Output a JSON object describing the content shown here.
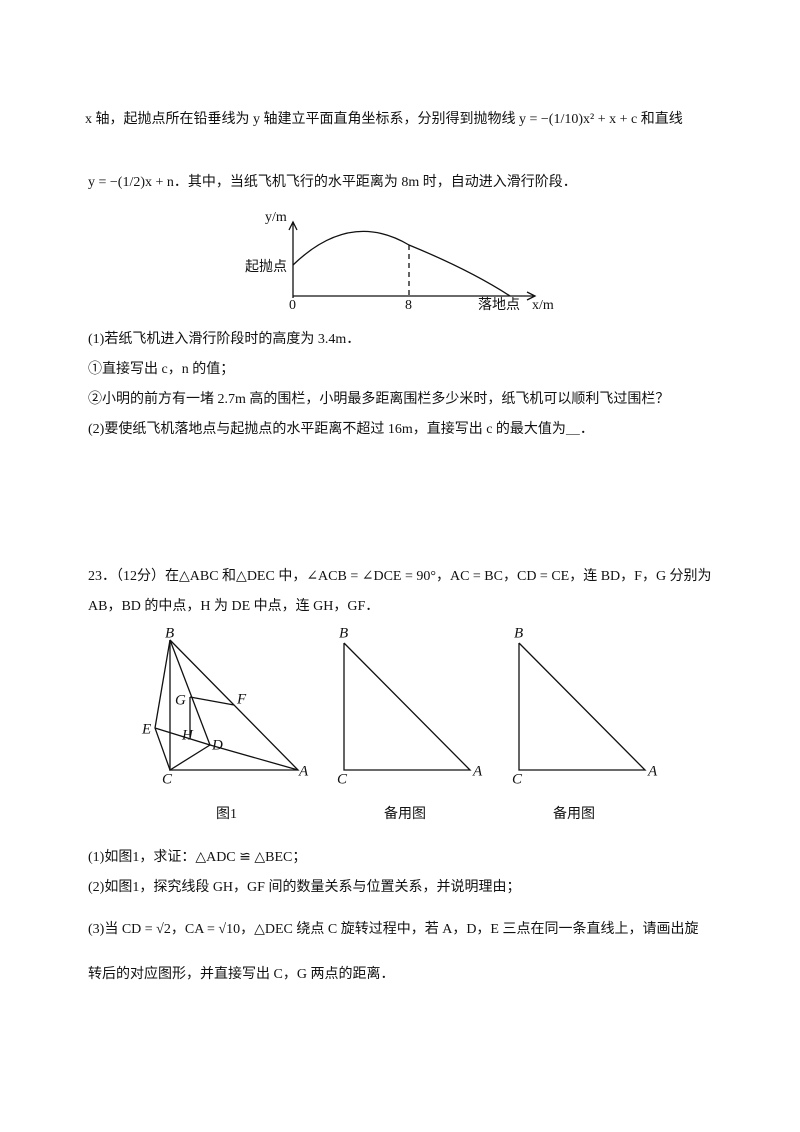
{
  "intro": [
    "x 轴，起抛点所在铅垂线为 y 轴建立平面直角坐标系，分别得到抛物线 y = −(1/10)x² + x + c 和直线",
    "y = −(1/2)x + n．其中，当纸飞机飞行的水平距离为 8m 时，自动进入滑行阶段．"
  ],
  "graph": {
    "y_label": "y/m",
    "start_label": "起抛点",
    "origin": "0",
    "x_mark": "8",
    "land_label": "落地点",
    "x_label": "x/m"
  },
  "questions": [
    "(1)若纸飞机进入滑行阶段时的高度为 3.4m．",
    "①直接写出 c，n 的值；",
    "②小明的前方有一堵 2.7m 高的围栏，小明最多距离围栏多少米时，纸飞机可以顺利飞过围栏？",
    "(2)要使纸飞机落地点与起抛点的水平距离不超过 16m，直接写出 c 的最大值为＿．"
  ],
  "problem23": {
    "lines": [
      "23．（12分）在△ABC 和△DEC 中，∠ACB = ∠DCE = 90°，AC = BC，CD = CE，连 BD，F，G 分别为",
      "AB，BD 的中点，H 为 DE 中点，连 GH，GF．"
    ],
    "figure1": {
      "points": [
        "B",
        "G",
        "F",
        "E",
        "H",
        "D",
        "C",
        "A"
      ],
      "caption": "图1"
    },
    "figure2": {
      "points": [
        "B",
        "C",
        "A"
      ],
      "caption": "备用图"
    },
    "figure3": {
      "points": [
        "B",
        "C",
        "A"
      ],
      "caption": "备用图"
    },
    "questions": [
      "(1)如图1，求证：△ADC ≌ △BEC；",
      "(2)如图1，探究线段 GH，GF 间的数量关系与位置关系，并说明理由；",
      "(3)当 CD = √2，CA = √10，△DEC 绕点 C 旋转过程中，若 A，D，E 三点在同一条直线上，请画出旋",
      "转后的对应图形，并直接写出 C，G 两点的距离．"
    ]
  }
}
